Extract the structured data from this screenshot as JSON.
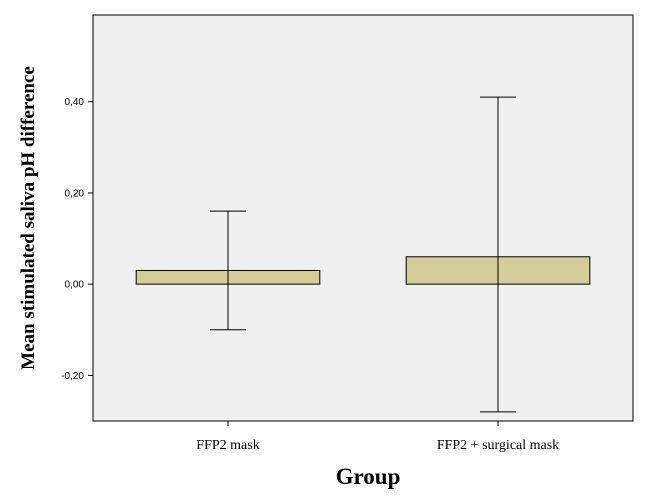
{
  "chart_data": {
    "type": "bar",
    "title": "",
    "xlabel": "Group",
    "ylabel": "Mean stimulated saliva pH difference",
    "categories": [
      "FFP2 mask",
      "FFP2 + surgical mask"
    ],
    "series": [
      {
        "values": [
          0.03,
          0.06
        ],
        "error_low": [
          -0.1,
          -0.28
        ],
        "error_high": [
          0.16,
          0.41
        ]
      }
    ],
    "ylim": [
      -0.3,
      0.59
    ],
    "yticks": [
      -0.2,
      0.0,
      0.2,
      0.4
    ],
    "ytick_labels": [
      "-0,20",
      "0,00",
      "0,20",
      "0,40"
    ],
    "grid": false,
    "legend": "none",
    "error_bars": true,
    "colors": {
      "plot_background": "#f0f0f0",
      "bar_fill": "#d4cc99",
      "bar_stroke": "#000000",
      "axis": "#000000"
    }
  }
}
